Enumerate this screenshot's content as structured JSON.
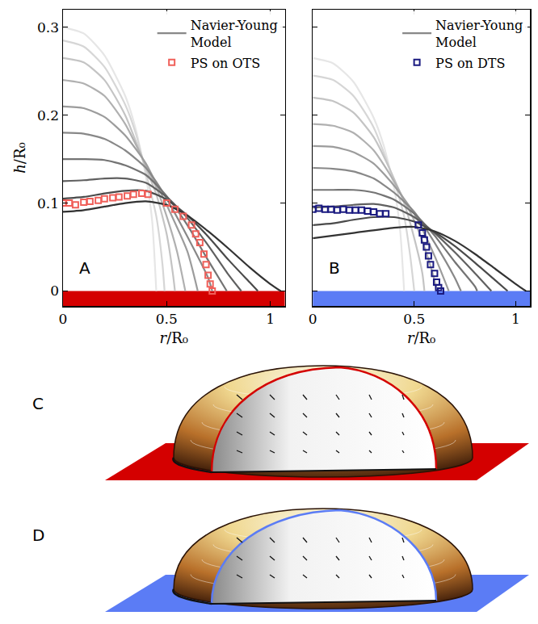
{
  "chart_data": [
    {
      "type": "line",
      "label": "A",
      "x_label": "r/R₀",
      "y_label": "h/R₀",
      "xlim": [
        0,
        1.07
      ],
      "ylim": [
        -0.017,
        0.32
      ],
      "xticks": [
        0,
        0.5,
        1
      ],
      "yticks": [
        0,
        0.1,
        0.2,
        0.3
      ],
      "legend": "top-right",
      "substrate": {
        "color": "#d40000",
        "top": 0
      },
      "series": [
        {
          "name": "Navier-Young Model",
          "type": "line",
          "curves": [
            {
              "color": "#e6e6e6",
              "x": [
                0,
                0.1,
                0.2,
                0.3,
                0.35,
                0.4,
                0.43,
                0.45
              ],
              "y": [
                0.3,
                0.293,
                0.268,
                0.222,
                0.185,
                0.13,
                0.08,
                0
              ]
            },
            {
              "color": "#d6d6d6",
              "x": [
                0,
                0.1,
                0.2,
                0.3,
                0.35,
                0.4,
                0.45,
                0.48,
                0.49
              ],
              "y": [
                0.285,
                0.278,
                0.255,
                0.212,
                0.18,
                0.135,
                0.085,
                0.03,
                0
              ]
            },
            {
              "color": "#c4c4c4",
              "x": [
                0,
                0.1,
                0.2,
                0.3,
                0.4,
                0.45,
                0.5,
                0.53,
                0.54
              ],
              "y": [
                0.265,
                0.26,
                0.24,
                0.2,
                0.14,
                0.11,
                0.065,
                0.02,
                0
              ]
            },
            {
              "color": "#b0b0b0",
              "x": [
                0,
                0.1,
                0.2,
                0.3,
                0.4,
                0.45,
                0.5,
                0.55,
                0.59
              ],
              "y": [
                0.24,
                0.236,
                0.222,
                0.19,
                0.143,
                0.118,
                0.085,
                0.045,
                0
              ]
            },
            {
              "color": "#9c9c9c",
              "x": [
                0,
                0.1,
                0.2,
                0.3,
                0.4,
                0.45,
                0.5,
                0.6,
                0.65
              ],
              "y": [
                0.21,
                0.208,
                0.198,
                0.177,
                0.145,
                0.122,
                0.098,
                0.045,
                0
              ]
            },
            {
              "color": "#888888",
              "x": [
                0,
                0.1,
                0.2,
                0.3,
                0.4,
                0.45,
                0.5,
                0.6,
                0.7,
                0.72
              ],
              "y": [
                0.18,
                0.179,
                0.173,
                0.16,
                0.14,
                0.124,
                0.105,
                0.062,
                0.015,
                0
              ]
            },
            {
              "color": "#747474",
              "x": [
                0,
                0.1,
                0.2,
                0.3,
                0.4,
                0.5,
                0.6,
                0.7,
                0.79
              ],
              "y": [
                0.15,
                0.15,
                0.149,
                0.143,
                0.132,
                0.108,
                0.075,
                0.035,
                0
              ]
            },
            {
              "color": "#606060",
              "x": [
                0,
                0.1,
                0.2,
                0.3,
                0.4,
                0.5,
                0.6,
                0.7,
                0.8,
                0.86
              ],
              "y": [
                0.125,
                0.126,
                0.128,
                0.128,
                0.123,
                0.107,
                0.083,
                0.052,
                0.018,
                0
              ]
            },
            {
              "color": "#4a4a4a",
              "x": [
                0,
                0.1,
                0.2,
                0.3,
                0.4,
                0.5,
                0.6,
                0.7,
                0.8,
                0.9,
                0.94
              ],
              "y": [
                0.105,
                0.107,
                0.111,
                0.114,
                0.114,
                0.104,
                0.086,
                0.062,
                0.035,
                0.01,
                0
              ]
            },
            {
              "color": "#333333",
              "x": [
                0,
                0.1,
                0.2,
                0.3,
                0.4,
                0.5,
                0.6,
                0.7,
                0.8,
                0.9,
                1.0,
                1.05
              ],
              "y": [
                0.09,
                0.092,
                0.096,
                0.1,
                0.102,
                0.098,
                0.086,
                0.068,
                0.048,
                0.027,
                0.008,
                0
              ]
            }
          ]
        },
        {
          "name": "PS on OTS",
          "type": "scatter",
          "marker": "square-open",
          "color": "#f0605a",
          "x": [
            0,
            0.03,
            0.06,
            0.1,
            0.13,
            0.17,
            0.2,
            0.24,
            0.27,
            0.31,
            0.34,
            0.38,
            0.41,
            0.5,
            0.54,
            0.58,
            0.62,
            0.64,
            0.66,
            0.68,
            0.69,
            0.7,
            0.71,
            0.72
          ],
          "y": [
            0.1,
            0.1,
            0.098,
            0.101,
            0.102,
            0.103,
            0.105,
            0.106,
            0.107,
            0.108,
            0.11,
            0.111,
            0.11,
            0.1,
            0.093,
            0.085,
            0.075,
            0.065,
            0.055,
            0.042,
            0.03,
            0.018,
            0.008,
            0
          ]
        }
      ]
    },
    {
      "type": "line",
      "label": "B",
      "x_label": "r/R₀",
      "xlim": [
        0,
        1.07
      ],
      "ylim": [
        -0.017,
        0.32
      ],
      "xticks": [
        0,
        0.5,
        1
      ],
      "yticks": [
        0,
        0.1,
        0.2,
        0.3
      ],
      "tick_labels": "x",
      "legend": "top-right",
      "substrate": {
        "color": "#5b7cf5",
        "top": 0
      },
      "series": [
        {
          "name": "Navier-Young Model",
          "type": "line",
          "curves": [
            {
              "color": "#e6e6e6",
              "x": [
                0,
                0.1,
                0.2,
                0.3,
                0.35,
                0.4,
                0.43,
                0.45
              ],
              "y": [
                0.265,
                0.259,
                0.238,
                0.197,
                0.165,
                0.118,
                0.07,
                0
              ]
            },
            {
              "color": "#d6d6d6",
              "x": [
                0,
                0.1,
                0.2,
                0.3,
                0.4,
                0.45,
                0.48,
                0.5
              ],
              "y": [
                0.245,
                0.24,
                0.222,
                0.186,
                0.125,
                0.085,
                0.04,
                0
              ]
            },
            {
              "color": "#c4c4c4",
              "x": [
                0,
                0.1,
                0.2,
                0.3,
                0.4,
                0.45,
                0.5,
                0.54,
                0.55
              ],
              "y": [
                0.22,
                0.216,
                0.203,
                0.175,
                0.128,
                0.1,
                0.06,
                0.02,
                0
              ]
            },
            {
              "color": "#b0b0b0",
              "x": [
                0,
                0.1,
                0.2,
                0.3,
                0.4,
                0.5,
                0.55,
                0.6,
                0.61
              ],
              "y": [
                0.19,
                0.188,
                0.18,
                0.16,
                0.125,
                0.08,
                0.05,
                0.012,
                0
              ]
            },
            {
              "color": "#9c9c9c",
              "x": [
                0,
                0.1,
                0.2,
                0.3,
                0.4,
                0.5,
                0.6,
                0.67
              ],
              "y": [
                0.165,
                0.164,
                0.158,
                0.145,
                0.12,
                0.088,
                0.04,
                0
              ]
            },
            {
              "color": "#888888",
              "x": [
                0,
                0.1,
                0.2,
                0.3,
                0.4,
                0.5,
                0.6,
                0.7,
                0.73
              ],
              "y": [
                0.14,
                0.139,
                0.136,
                0.128,
                0.112,
                0.09,
                0.055,
                0.015,
                0
              ]
            },
            {
              "color": "#747474",
              "x": [
                0,
                0.1,
                0.2,
                0.3,
                0.4,
                0.5,
                0.6,
                0.7,
                0.8,
                0.81
              ],
              "y": [
                0.115,
                0.115,
                0.115,
                0.112,
                0.104,
                0.088,
                0.063,
                0.033,
                0.005,
                0
              ]
            },
            {
              "color": "#606060",
              "x": [
                0,
                0.1,
                0.2,
                0.3,
                0.4,
                0.5,
                0.6,
                0.7,
                0.8,
                0.88
              ],
              "y": [
                0.095,
                0.096,
                0.098,
                0.099,
                0.095,
                0.084,
                0.066,
                0.044,
                0.02,
                0
              ]
            },
            {
              "color": "#4a4a4a",
              "x": [
                0,
                0.1,
                0.2,
                0.3,
                0.4,
                0.5,
                0.6,
                0.7,
                0.8,
                0.9,
                0.96
              ],
              "y": [
                0.075,
                0.077,
                0.081,
                0.084,
                0.084,
                0.079,
                0.067,
                0.051,
                0.032,
                0.012,
                0
              ]
            },
            {
              "color": "#333333",
              "x": [
                0,
                0.2,
                0.4,
                0.5,
                0.6,
                0.7,
                0.8,
                0.9,
                1.0,
                1.05
              ],
              "y": [
                0.06,
                0.066,
                0.072,
                0.073,
                0.068,
                0.057,
                0.042,
                0.025,
                0.008,
                0
              ]
            }
          ]
        },
        {
          "name": "PS on DTS",
          "type": "scatter",
          "marker": "square-open",
          "color": "#1a1a80",
          "x": [
            0,
            0.03,
            0.06,
            0.09,
            0.12,
            0.15,
            0.18,
            0.21,
            0.24,
            0.27,
            0.3,
            0.33,
            0.36,
            0.52,
            0.54,
            0.55,
            0.56,
            0.57,
            0.58,
            0.6,
            0.61,
            0.62,
            0.63
          ],
          "y": [
            0.093,
            0.094,
            0.093,
            0.093,
            0.092,
            0.093,
            0.092,
            0.092,
            0.092,
            0.091,
            0.09,
            0.088,
            0.088,
            0.075,
            0.066,
            0.058,
            0.05,
            0.04,
            0.03,
            0.02,
            0.01,
            0.004,
            0
          ]
        }
      ]
    }
  ],
  "illustrations": [
    {
      "label": "C",
      "color": "#d40000"
    },
    {
      "label": "D",
      "color": "#5b7cf5"
    }
  ]
}
